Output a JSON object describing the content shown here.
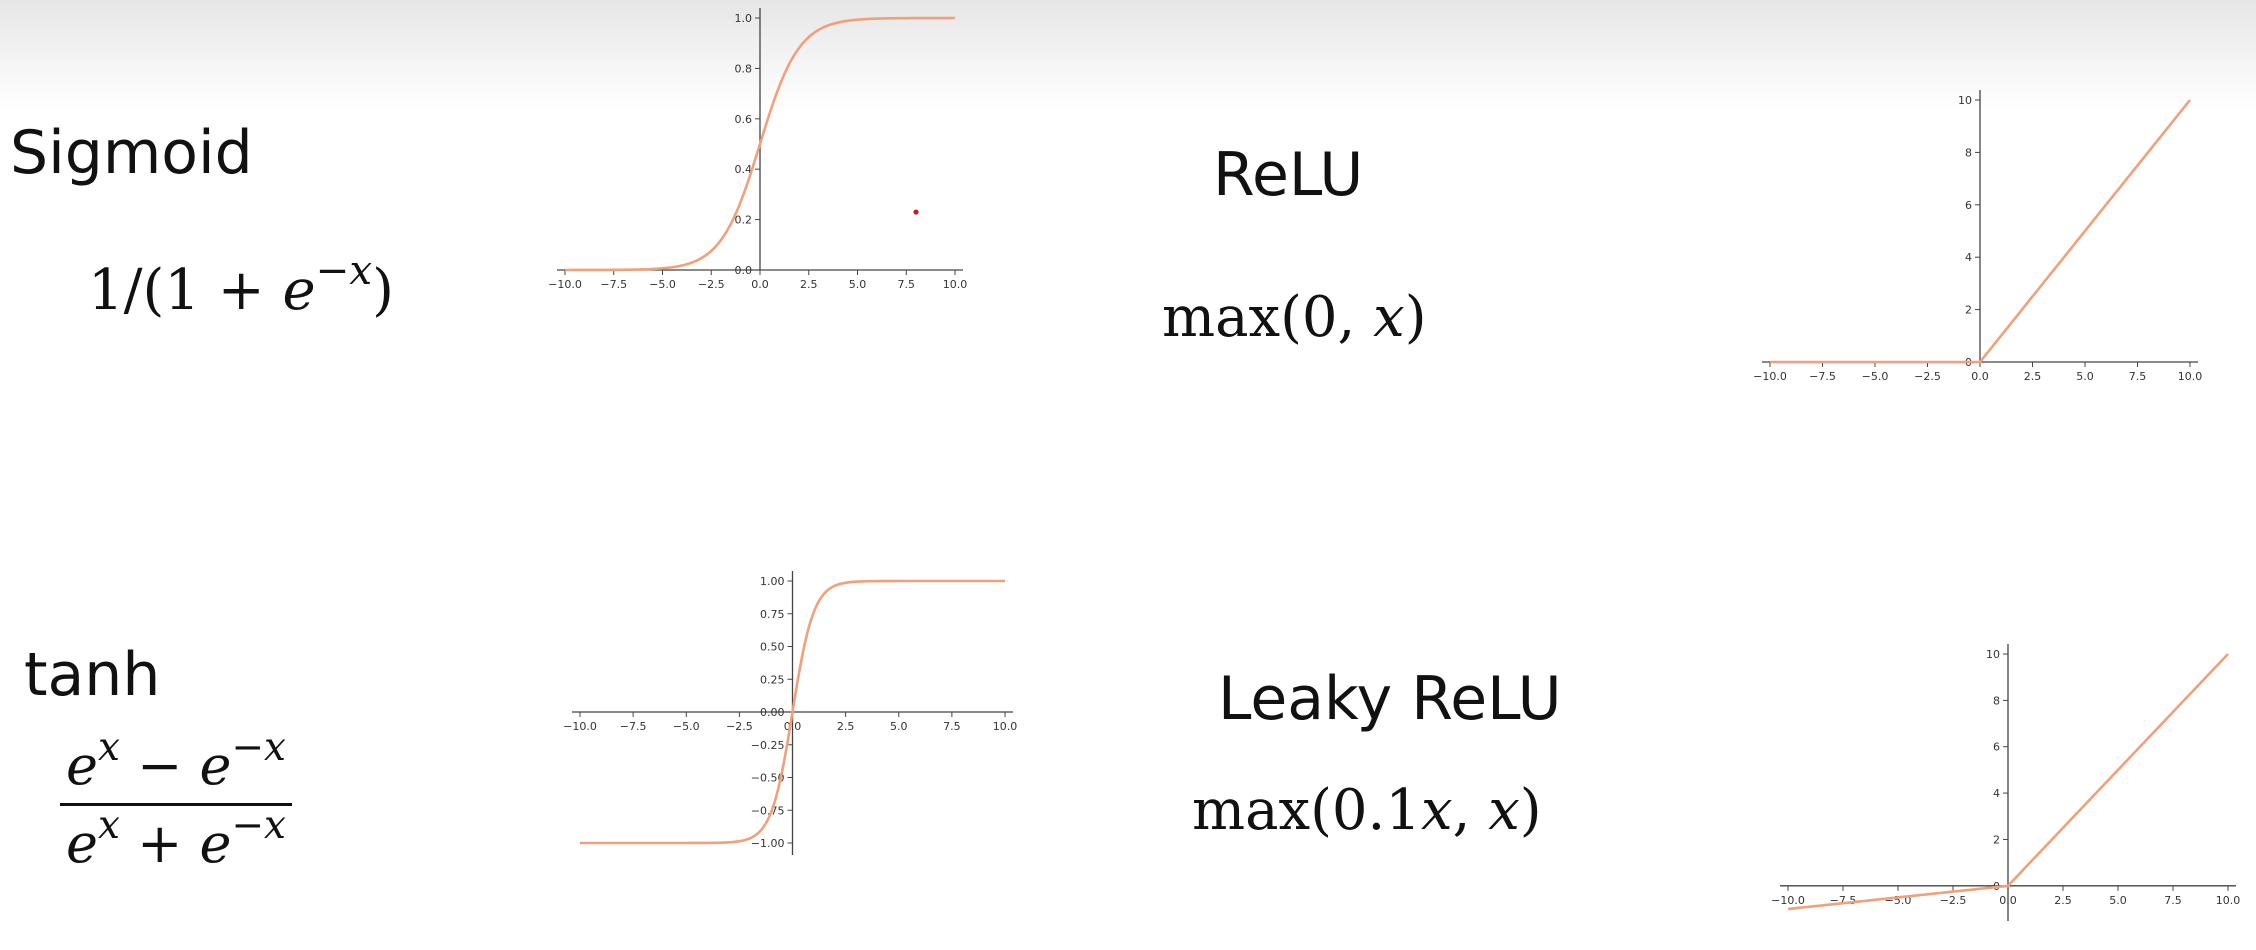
{
  "sigmoid": {
    "name": "Sigmoid",
    "formula": {
      "prefix": "1/(1 + ",
      "base": "e",
      "exp": "−x",
      "suffix": ")"
    }
  },
  "relu": {
    "name": "ReLU",
    "formula": {
      "prefix": "max(0, ",
      "var": "x",
      "suffix": ")"
    }
  },
  "tanh": {
    "name": "tanh",
    "formula": {
      "num_a": "e",
      "num_a_exp": "x",
      "num_op": " − ",
      "num_b": "e",
      "num_b_exp": "−x",
      "den_a": "e",
      "den_a_exp": "x",
      "den_op": " + ",
      "den_b": "e",
      "den_b_exp": "−x"
    }
  },
  "leaky_relu": {
    "name": "Leaky ReLU",
    "formula": {
      "prefix": "max(0.1",
      "var1": "x",
      "mid": ", ",
      "var2": "x",
      "suffix": ")"
    }
  },
  "chart_data": [
    {
      "id": "sigmoid",
      "type": "line",
      "function": "sigmoid",
      "xlim": [
        -10,
        10
      ],
      "ylim": [
        0,
        1
      ],
      "xticks": [
        "−10.0",
        "−7.5",
        "−5.0",
        "−2.5",
        "0.0",
        "2.5",
        "5.0",
        "7.5",
        "10.0"
      ],
      "yticks": [
        "0.0",
        "0.2",
        "0.4",
        "0.6",
        "0.8",
        "1.0"
      ],
      "x": [
        -10,
        -7.5,
        -5,
        -2.5,
        -1,
        0,
        1,
        2.5,
        5,
        7.5,
        10
      ],
      "y": [
        5e-05,
        0.00055,
        0.0067,
        0.076,
        0.269,
        0.5,
        0.731,
        0.924,
        0.9933,
        0.9994,
        0.99995
      ],
      "annotation_point": {
        "x": 8,
        "y": 0.23,
        "color": "#c0201a"
      },
      "line_color": "#f0a07a",
      "axes": "centered-y"
    },
    {
      "id": "relu",
      "type": "line",
      "function": "relu",
      "xlim": [
        -10,
        10
      ],
      "ylim": [
        0,
        10
      ],
      "xticks": [
        "−10.0",
        "−7.5",
        "−5.0",
        "−2.5",
        "0.0",
        "2.5",
        "5.0",
        "7.5",
        "10.0"
      ],
      "yticks": [
        "0",
        "2",
        "4",
        "6",
        "8",
        "10"
      ],
      "x": [
        -10,
        0,
        10
      ],
      "y": [
        0,
        0,
        10
      ],
      "line_color": "#f0a07a",
      "axes": "centered-y"
    },
    {
      "id": "tanh",
      "type": "line",
      "function": "tanh",
      "xlim": [
        -10,
        10
      ],
      "ylim": [
        -1,
        1
      ],
      "xticks": [
        "−10.0",
        "−7.5",
        "−5.0",
        "−2.5",
        "0.0",
        "2.5",
        "5.0",
        "7.5",
        "10.0"
      ],
      "yticks": [
        "−1.00",
        "−0.75",
        "−0.50",
        "−0.25",
        "0.00",
        "0.25",
        "0.50",
        "0.75",
        "1.00"
      ],
      "x": [
        -10,
        -5,
        -2.5,
        -1,
        0,
        1,
        2.5,
        5,
        10
      ],
      "y": [
        -1,
        -0.9999,
        -0.987,
        -0.762,
        0,
        0.762,
        0.987,
        0.9999,
        1
      ],
      "line_color": "#f0a07a",
      "axes": "centered"
    },
    {
      "id": "leaky_relu",
      "type": "line",
      "function": "leaky_relu",
      "xlim": [
        -10,
        10
      ],
      "ylim": [
        -1,
        10
      ],
      "xticks": [
        "−10.0",
        "−7.5",
        "−5.0",
        "−2.5",
        "0.0",
        "2.5",
        "5.0",
        "7.5",
        "10.0"
      ],
      "yticks": [
        "0",
        "2",
        "4",
        "6",
        "8",
        "10"
      ],
      "x": [
        -10,
        0,
        10
      ],
      "y": [
        -1,
        0,
        10
      ],
      "line_color": "#f0a07a",
      "axes": "centered"
    }
  ]
}
